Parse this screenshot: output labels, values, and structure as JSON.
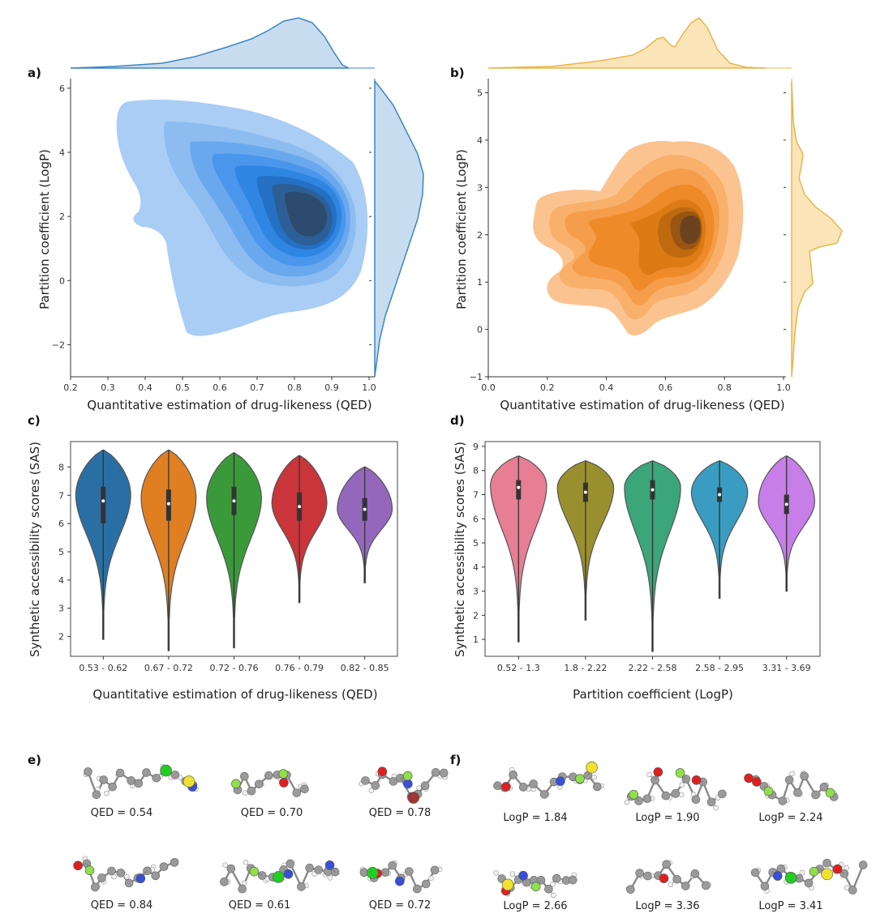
{
  "panel_labels": {
    "a": "a)",
    "b": "b)",
    "c": "c)",
    "d": "d)",
    "e": "e)",
    "f": "f)"
  },
  "colors": {
    "blue": "#1f77b4",
    "orange": "#e8a33d",
    "violin_c": [
      "#2a6fa3",
      "#e07f22",
      "#3a9a3a",
      "#c9353a",
      "#9467bd"
    ],
    "violin_d": [
      "#e87e93",
      "#9a8f2e",
      "#3aa67a",
      "#3a9cc0",
      "#c77ee8"
    ],
    "atoms": {
      "C": "#9a9a9a",
      "H": "#f2f2f2",
      "N": "#3a4fd8",
      "O": "#e02020",
      "F": "#8fe04a",
      "Cl": "#22cc22",
      "S": "#f0e030",
      "Br": "#a03535"
    }
  },
  "chart_data": [
    {
      "panel": "a",
      "type": "density",
      "xlabel": "Quantitative estimation of drug-likeness (QED)",
      "ylabel": "Partition coefficient (LogP)",
      "xlim": [
        0.2,
        1.0
      ],
      "ylim": [
        -3,
        6.3
      ],
      "xticks": [
        "0.2",
        "0.3",
        "0.4",
        "0.5",
        "0.6",
        "0.7",
        "0.8",
        "0.9",
        "1.0"
      ],
      "yticks": [
        "−2",
        "0",
        "2",
        "4",
        "6"
      ],
      "density_peak": {
        "x": 0.82,
        "y": 2.7
      },
      "marginal_x_mode": 0.81,
      "marginal_y_mode": 3.4
    },
    {
      "panel": "b",
      "type": "density",
      "xlabel": "Quantitative estimation of drug-likeness (QED)",
      "ylabel": "Partition coefficient (LogP)",
      "xlim": [
        0.0,
        1.0
      ],
      "ylim": [
        -1,
        5.3
      ],
      "xticks": [
        "0.0",
        "0.2",
        "0.4",
        "0.6",
        "0.8",
        "1.0"
      ],
      "yticks": [
        "−1",
        "0",
        "1",
        "2",
        "3",
        "4",
        "5"
      ],
      "density_peak": {
        "x": 0.72,
        "y": 2.1
      },
      "marginal_x_modes": [
        0.56,
        0.71
      ],
      "marginal_y_mode": 2.0
    },
    {
      "panel": "c",
      "type": "violin",
      "xlabel": "Quantitative estimation of drug-likeness (QED)",
      "ylabel": "Synthetic accessibility scores (SAS)",
      "ylim": [
        1.3,
        8.9
      ],
      "yticks": [
        "2",
        "3",
        "4",
        "5",
        "6",
        "7",
        "8"
      ],
      "categories": [
        "0.53 - 0.62",
        "0.67 - 0.72",
        "0.72 - 0.76",
        "0.76 - 0.79",
        "0.82 - 0.85"
      ],
      "stats": [
        {
          "min": 1.9,
          "q1": 6.0,
          "median": 6.8,
          "q3": 7.3,
          "max": 8.6,
          "mode": 7.0
        },
        {
          "min": 1.5,
          "q1": 6.1,
          "median": 6.7,
          "q3": 7.2,
          "max": 8.6,
          "mode": 6.9
        },
        {
          "min": 1.6,
          "q1": 6.3,
          "median": 6.8,
          "q3": 7.3,
          "max": 8.5,
          "mode": 6.9
        },
        {
          "min": 3.2,
          "q1": 6.1,
          "median": 6.6,
          "q3": 7.1,
          "max": 8.4,
          "mode": 6.7
        },
        {
          "min": 3.9,
          "q1": 6.1,
          "median": 6.5,
          "q3": 6.9,
          "max": 8.0,
          "mode": 6.5
        }
      ]
    },
    {
      "panel": "d",
      "type": "violin",
      "xlabel": "Partition coefficient (LogP)",
      "ylabel": "Synthetic accessibility scores (SAS)",
      "ylim": [
        0.3,
        9.2
      ],
      "yticks": [
        "1",
        "2",
        "3",
        "4",
        "5",
        "6",
        "7",
        "8",
        "9"
      ],
      "categories": [
        "0.52 - 1.3",
        "1.8 - 2.22",
        "2.22 - 2.58",
        "2.58 - 2.95",
        "3.31 - 3.69"
      ],
      "stats": [
        {
          "min": 0.9,
          "q1": 6.8,
          "median": 7.3,
          "q3": 7.6,
          "max": 8.6,
          "mode": 7.4
        },
        {
          "min": 1.8,
          "q1": 6.7,
          "median": 7.1,
          "q3": 7.5,
          "max": 8.4,
          "mode": 7.3
        },
        {
          "min": 0.5,
          "q1": 6.8,
          "median": 7.2,
          "q3": 7.6,
          "max": 8.4,
          "mode": 7.3
        },
        {
          "min": 2.7,
          "q1": 6.7,
          "median": 7.0,
          "q3": 7.3,
          "max": 8.4,
          "mode": 7.1
        },
        {
          "min": 3.0,
          "q1": 6.2,
          "median": 6.6,
          "q3": 7.0,
          "max": 8.6,
          "mode": 6.7
        }
      ]
    }
  ],
  "molecules_e": [
    {
      "caption": "QED = 0.54",
      "atoms": [
        "C",
        "N",
        "Cl",
        "S"
      ]
    },
    {
      "caption": "QED = 0.70",
      "atoms": [
        "C",
        "O",
        "F",
        "F"
      ]
    },
    {
      "caption": "QED = 0.78",
      "atoms": [
        "C",
        "O",
        "N",
        "Br",
        "F"
      ]
    },
    {
      "caption": "QED = 0.84",
      "atoms": [
        "C",
        "N",
        "O",
        "F"
      ]
    },
    {
      "caption": "QED = 0.61",
      "atoms": [
        "C",
        "N",
        "N",
        "Cl",
        "F"
      ]
    },
    {
      "caption": "QED = 0.72",
      "atoms": [
        "C",
        "O",
        "N",
        "Cl"
      ]
    }
  ],
  "molecules_f": [
    {
      "caption": "LogP = 1.84",
      "atoms": [
        "C",
        "O",
        "N",
        "F",
        "S"
      ]
    },
    {
      "caption": "LogP = 1.90",
      "atoms": [
        "C",
        "O",
        "O",
        "F",
        "F"
      ]
    },
    {
      "caption": "LogP = 2.24",
      "atoms": [
        "C",
        "O",
        "O",
        "F",
        "F"
      ]
    },
    {
      "caption": "LogP = 2.66",
      "atoms": [
        "C",
        "O",
        "N",
        "F",
        "S"
      ]
    },
    {
      "caption": "LogP = 3.36",
      "atoms": [
        "C",
        "O"
      ]
    },
    {
      "caption": "LogP = 3.41",
      "atoms": [
        "C",
        "N",
        "O",
        "Cl",
        "S",
        "F"
      ]
    }
  ]
}
